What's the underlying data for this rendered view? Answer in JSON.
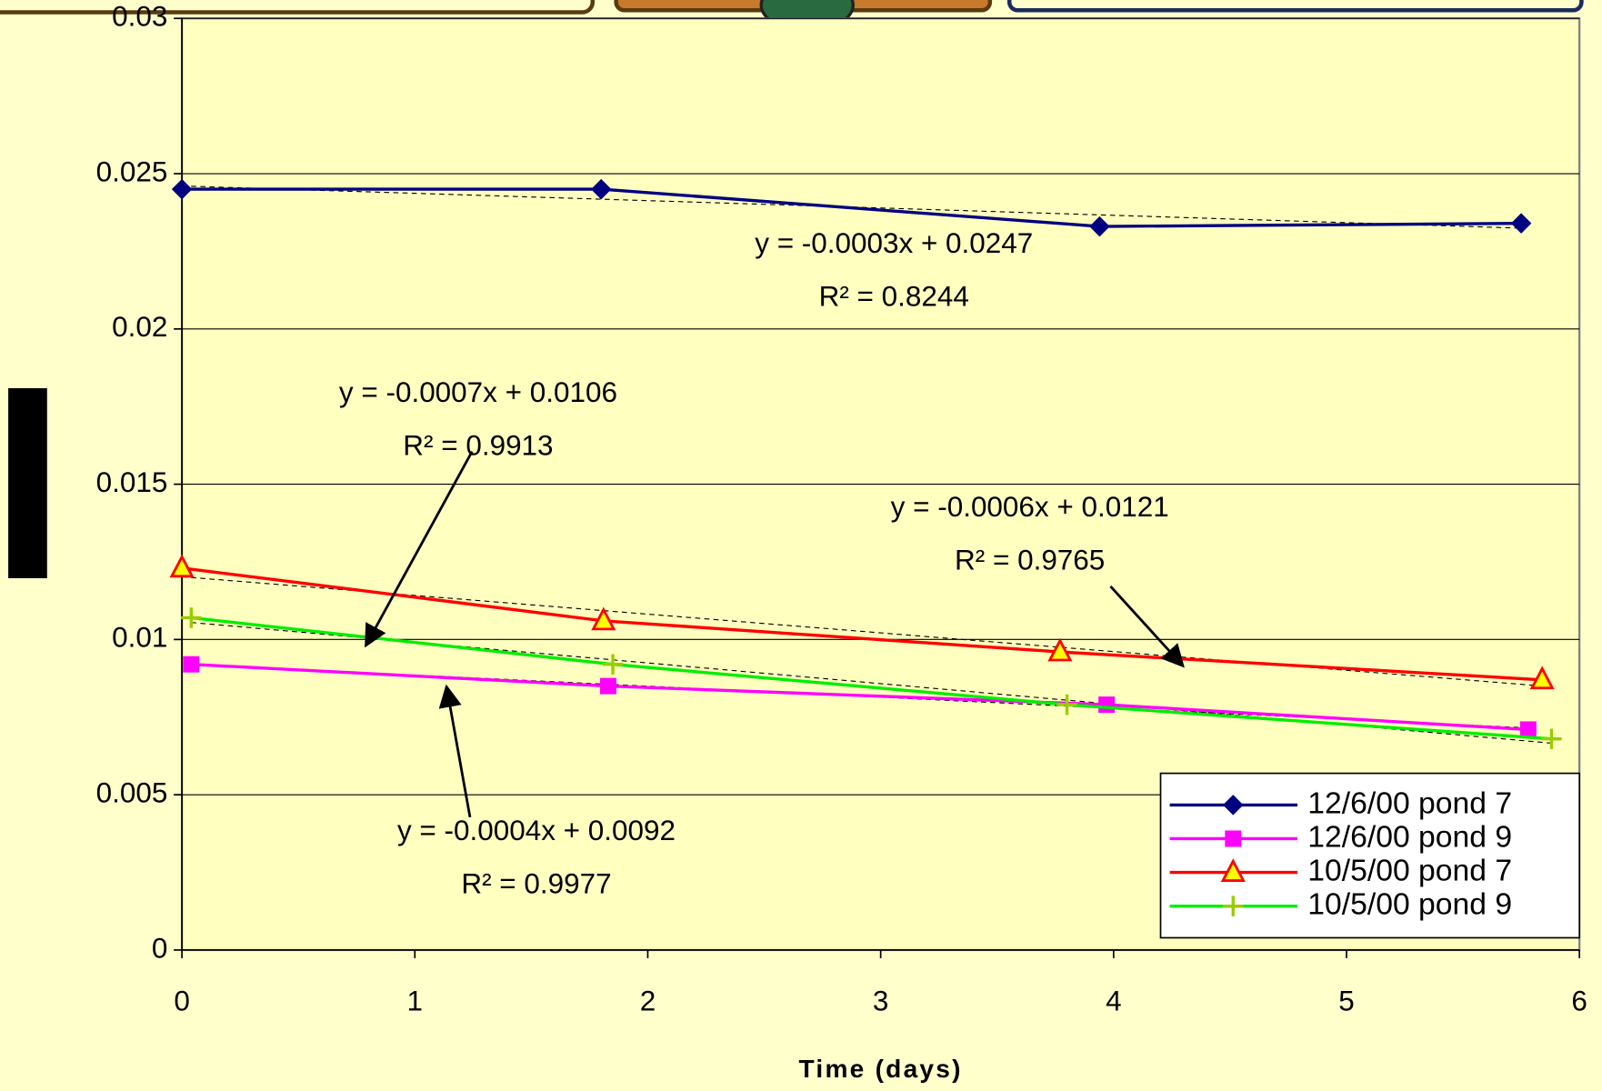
{
  "chart_data": {
    "type": "line",
    "x_label": "Time (days)",
    "xlim": [
      0,
      6
    ],
    "xticks": [
      0,
      1,
      2,
      3,
      4,
      5,
      6
    ],
    "ylim": [
      0,
      0.03
    ],
    "yticks": [
      0,
      0.005,
      0.01,
      0.015,
      0.02,
      0.025,
      0.03
    ],
    "grid": true,
    "legend_position": "lower right",
    "series": [
      {
        "name": "12/6/00 pond 7",
        "color": "#000080",
        "marker": "diamond",
        "x": [
          0,
          1.8,
          3.94,
          5.75
        ],
        "values": [
          0.0245,
          0.0245,
          0.0233,
          0.0234
        ]
      },
      {
        "name": "12/6/00 pond 9",
        "color": "#ff00ff",
        "marker": "square",
        "x": [
          0.04,
          1.83,
          3.97,
          5.78
        ],
        "values": [
          0.0092,
          0.0085,
          0.0079,
          0.0071
        ]
      },
      {
        "name": "10/5/00 pond 7",
        "color": "#ff0000",
        "marker": "triangle",
        "x": [
          0,
          1.81,
          3.77,
          5.84
        ],
        "values": [
          0.0123,
          0.0106,
          0.0096,
          0.0087
        ]
      },
      {
        "name": "10/5/00 pond 9",
        "color": "#00ee00",
        "marker": "plus",
        "x": [
          0.04,
          1.85,
          3.8,
          5.88
        ],
        "values": [
          0.0107,
          0.0092,
          0.0079,
          0.0068
        ]
      }
    ],
    "annotations": [
      {
        "equation": "y = -0.0003x + 0.0247",
        "r2": "R² = 0.8244"
      },
      {
        "equation": "y = -0.0007x + 0.0106",
        "r2": "R² = 0.9913"
      },
      {
        "equation": "y = -0.0006x + 0.0121",
        "r2": "R² = 0.9765"
      },
      {
        "equation": "y = -0.0004x + 0.0092",
        "r2": "R² = 0.9977"
      }
    ]
  }
}
